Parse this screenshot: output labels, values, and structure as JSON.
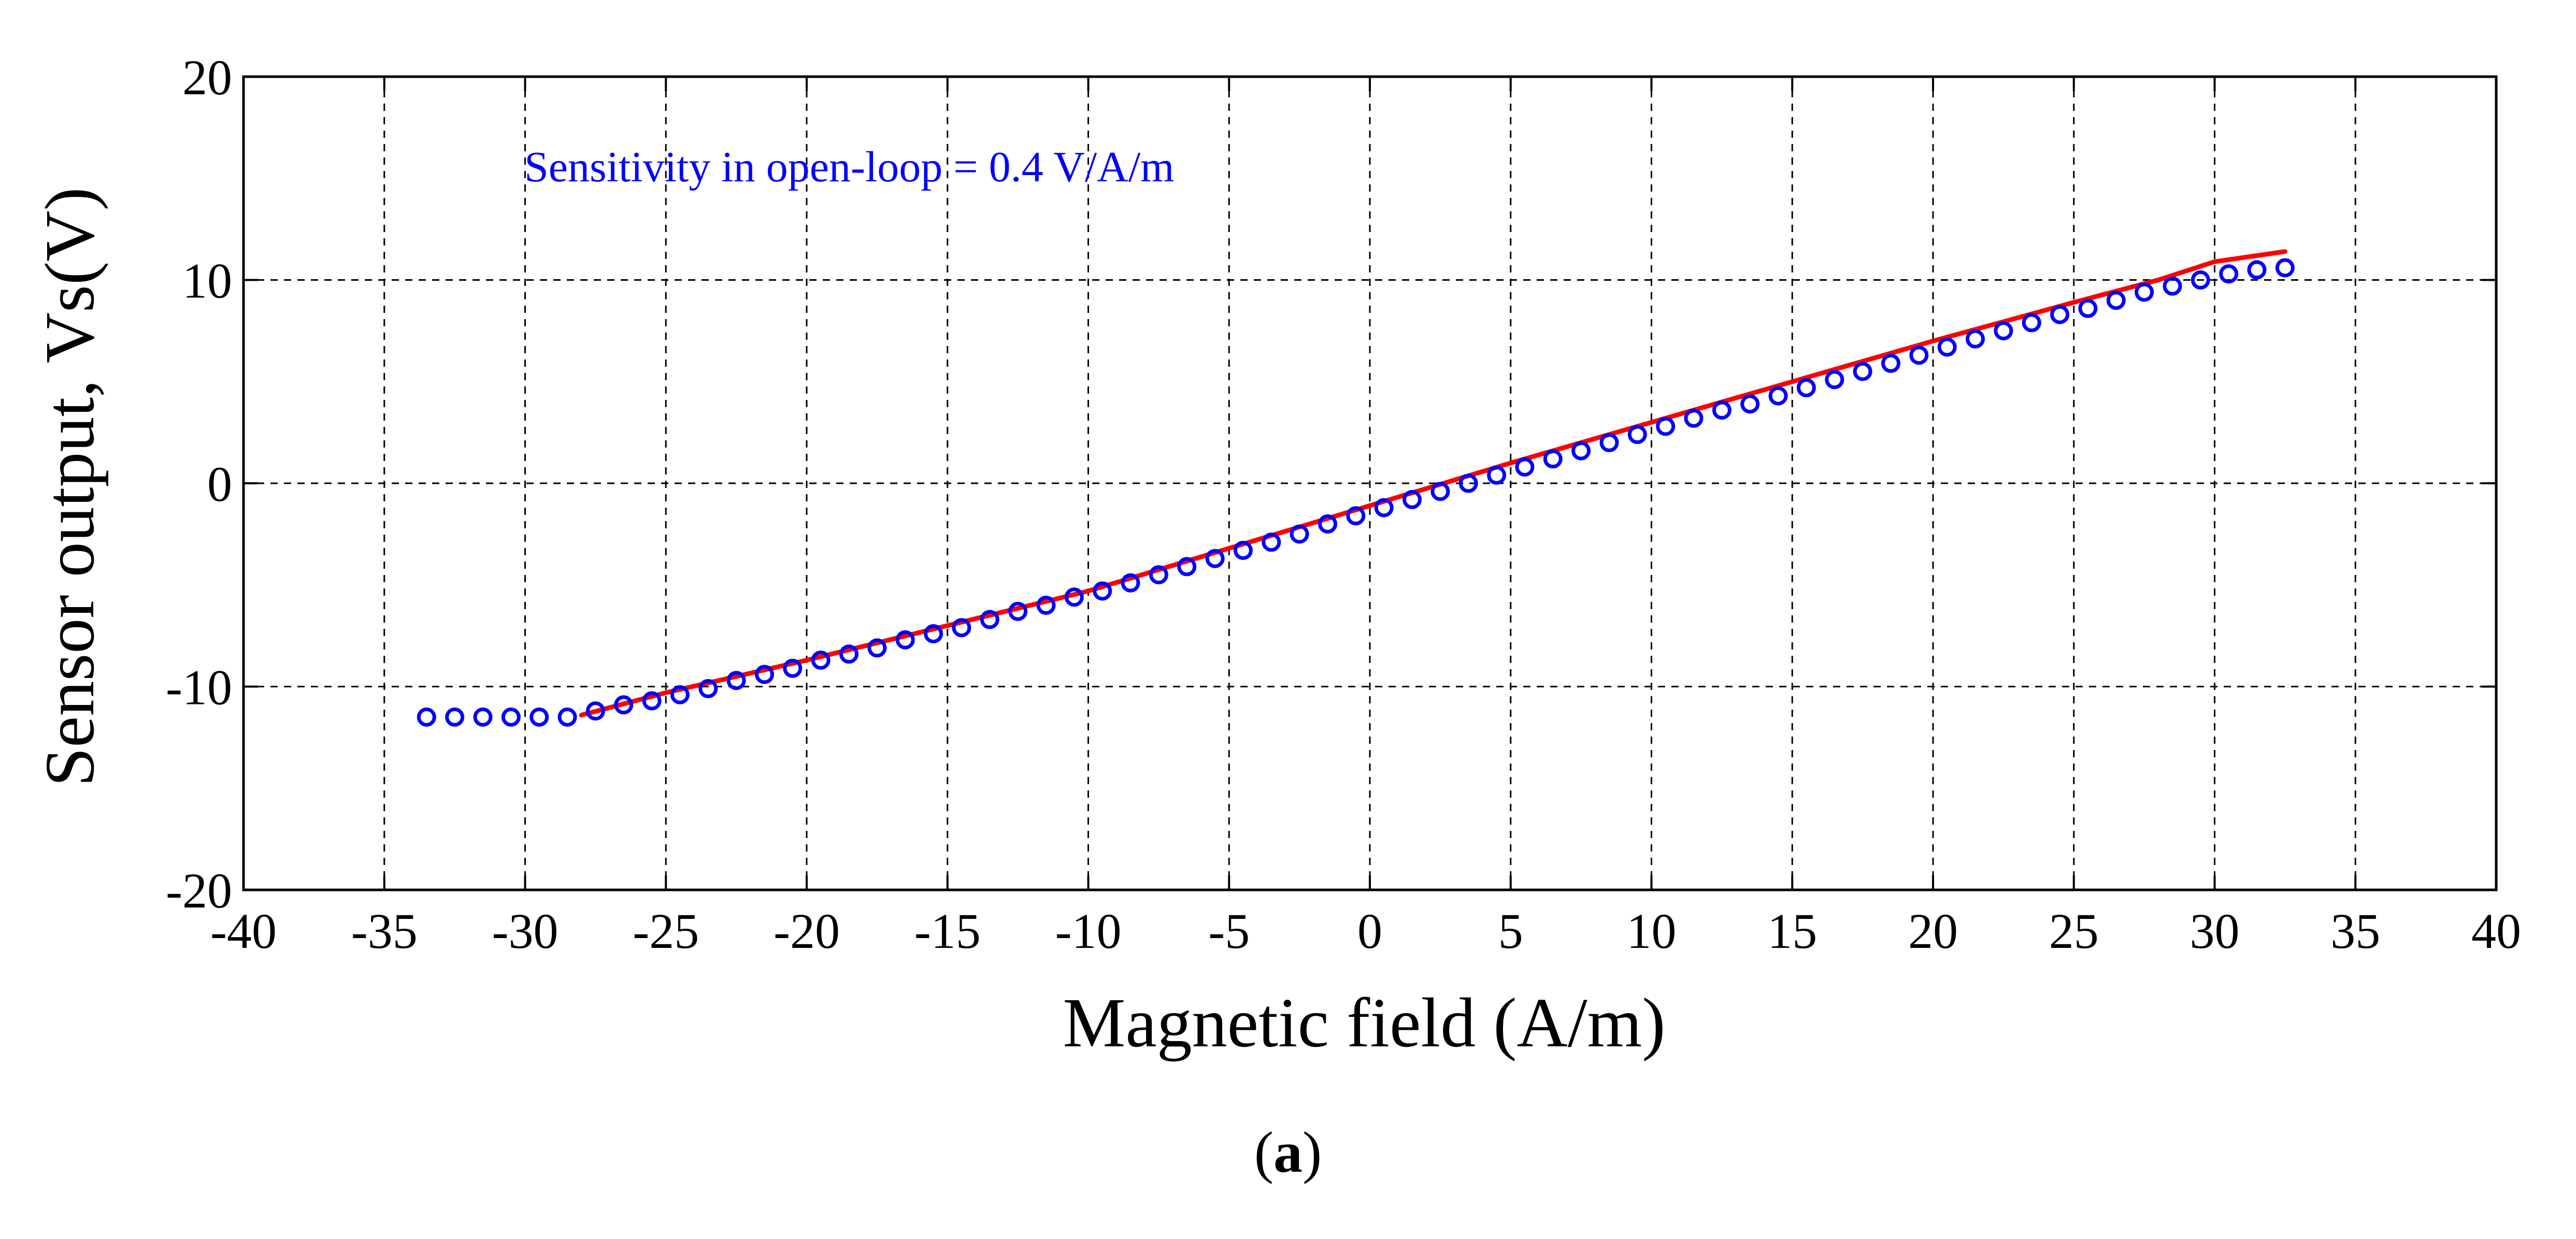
{
  "chart_data": {
    "type": "scatter",
    "title": "",
    "xlabel": "Magnetic field (A/m)",
    "ylabel": "Sensor output,  Vs(V)",
    "xlim": [
      -40,
      40
    ],
    "ylim": [
      -20,
      20
    ],
    "xticks": [
      -40,
      -35,
      -30,
      -25,
      -20,
      -15,
      -10,
      -5,
      0,
      5,
      10,
      15,
      20,
      25,
      30,
      35,
      40
    ],
    "yticks": [
      -20,
      -10,
      0,
      10,
      20
    ],
    "grid": true,
    "annotation": "Sensitivity in open-loop = 0.4 V/A/m",
    "panel_label": {
      "open": "(",
      "letter": "a",
      "close": ")"
    },
    "series": [
      {
        "name": "measured",
        "style": "circle-markers",
        "color": "#0000ff",
        "points": [
          [
            -33.5,
            -11.5
          ],
          [
            -32.5,
            -11.5
          ],
          [
            -31.5,
            -11.5
          ],
          [
            -30.5,
            -11.5
          ],
          [
            -29.5,
            -11.5
          ],
          [
            -28.5,
            -11.5
          ],
          [
            -27.5,
            -11.2
          ],
          [
            -26.5,
            -10.9
          ],
          [
            -25.5,
            -10.7
          ],
          [
            -24.5,
            -10.4
          ],
          [
            -23.5,
            -10.1
          ],
          [
            -22.5,
            -9.7
          ],
          [
            -21.5,
            -9.4
          ],
          [
            -20.5,
            -9.1
          ],
          [
            -19.5,
            -8.7
          ],
          [
            -18.5,
            -8.4
          ],
          [
            -17.5,
            -8.1
          ],
          [
            -16.5,
            -7.7
          ],
          [
            -15.5,
            -7.4
          ],
          [
            -14.5,
            -7.1
          ],
          [
            -13.5,
            -6.7
          ],
          [
            -12.5,
            -6.3
          ],
          [
            -11.5,
            -6.0
          ],
          [
            -10.5,
            -5.6
          ],
          [
            -9.5,
            -5.3
          ],
          [
            -8.5,
            -4.9
          ],
          [
            -7.5,
            -4.5
          ],
          [
            -6.5,
            -4.1
          ],
          [
            -5.5,
            -3.7
          ],
          [
            -4.5,
            -3.3
          ],
          [
            -3.5,
            -2.9
          ],
          [
            -2.5,
            -2.5
          ],
          [
            -1.5,
            -2.0
          ],
          [
            -0.5,
            -1.6
          ],
          [
            0.5,
            -1.2
          ],
          [
            1.5,
            -0.8
          ],
          [
            2.5,
            -0.4
          ],
          [
            3.5,
            0.0
          ],
          [
            4.5,
            0.4
          ],
          [
            5.5,
            0.8
          ],
          [
            6.5,
            1.2
          ],
          [
            7.5,
            1.6
          ],
          [
            8.5,
            2.0
          ],
          [
            9.5,
            2.4
          ],
          [
            10.5,
            2.8
          ],
          [
            11.5,
            3.2
          ],
          [
            12.5,
            3.6
          ],
          [
            13.5,
            3.9
          ],
          [
            14.5,
            4.3
          ],
          [
            15.5,
            4.7
          ],
          [
            16.5,
            5.1
          ],
          [
            17.5,
            5.5
          ],
          [
            18.5,
            5.9
          ],
          [
            19.5,
            6.3
          ],
          [
            20.5,
            6.7
          ],
          [
            21.5,
            7.1
          ],
          [
            22.5,
            7.5
          ],
          [
            23.5,
            7.9
          ],
          [
            24.5,
            8.3
          ],
          [
            25.5,
            8.6
          ],
          [
            26.5,
            9.0
          ],
          [
            27.5,
            9.4
          ],
          [
            28.5,
            9.7
          ],
          [
            29.5,
            10.0
          ],
          [
            30.5,
            10.3
          ],
          [
            31.5,
            10.5
          ],
          [
            32.5,
            10.6
          ]
        ]
      },
      {
        "name": "fit",
        "style": "line",
        "color": "#ff0000",
        "points": [
          [
            -28,
            -11.4
          ],
          [
            -25,
            -10.3
          ],
          [
            -20,
            -8.7
          ],
          [
            -15,
            -7.0
          ],
          [
            -10,
            -5.3
          ],
          [
            -5,
            -3.2
          ],
          [
            0,
            -1.1
          ],
          [
            5,
            1.0
          ],
          [
            10,
            3.0
          ],
          [
            15,
            5.0
          ],
          [
            20,
            7.0
          ],
          [
            25,
            8.9
          ],
          [
            28,
            10.0
          ],
          [
            30,
            10.9
          ],
          [
            32.5,
            11.4
          ]
        ]
      }
    ]
  }
}
